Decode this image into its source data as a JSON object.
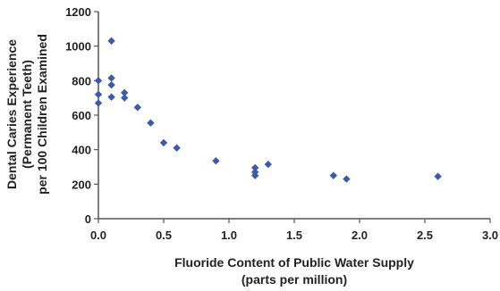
{
  "chart_data": {
    "type": "scatter",
    "xlabel": [
      "Fluoride Content of Public Water Supply",
      "(parts per million)"
    ],
    "ylabel": [
      "Dental Caries Experience",
      "(Permanent Teeth)",
      "per 100 Children Examined"
    ],
    "xlim": [
      0,
      3
    ],
    "ylim": [
      0,
      1200
    ],
    "x_ticks": [
      "0.0",
      "0.5",
      "1.0",
      "1.5",
      "2.0",
      "2.5",
      "3.0"
    ],
    "y_ticks": [
      "0",
      "200",
      "400",
      "600",
      "800",
      "1000",
      "1200"
    ],
    "grid": false,
    "marker_color": "#3A5BAA",
    "points": [
      {
        "x": 0.0,
        "y": 800
      },
      {
        "x": 0.0,
        "y": 720
      },
      {
        "x": 0.0,
        "y": 670
      },
      {
        "x": 0.1,
        "y": 1030
      },
      {
        "x": 0.1,
        "y": 815
      },
      {
        "x": 0.1,
        "y": 775
      },
      {
        "x": 0.1,
        "y": 705
      },
      {
        "x": 0.2,
        "y": 730
      },
      {
        "x": 0.2,
        "y": 700
      },
      {
        "x": 0.3,
        "y": 645
      },
      {
        "x": 0.4,
        "y": 555
      },
      {
        "x": 0.5,
        "y": 440
      },
      {
        "x": 0.6,
        "y": 410
      },
      {
        "x": 0.9,
        "y": 335
      },
      {
        "x": 1.2,
        "y": 295
      },
      {
        "x": 1.2,
        "y": 270
      },
      {
        "x": 1.2,
        "y": 250
      },
      {
        "x": 1.3,
        "y": 315
      },
      {
        "x": 1.8,
        "y": 250
      },
      {
        "x": 1.9,
        "y": 230
      },
      {
        "x": 2.6,
        "y": 245
      }
    ]
  }
}
